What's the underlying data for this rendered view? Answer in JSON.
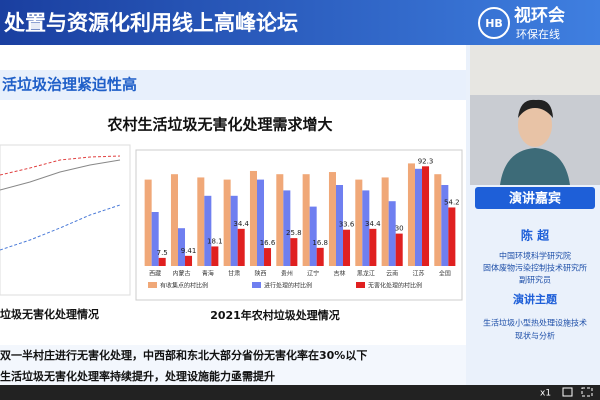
{
  "header": {
    "title": "处置与资源化利用线上高峰论坛",
    "logo_name": "视环会",
    "logo_slogan": "环保在线"
  },
  "slide": {
    "section_title": "活垃圾治理紧迫性高",
    "heading": "农村生活垃圾无害化处理需求增大",
    "left_caption": "垃圾无害化处理情况",
    "bullets": [
      "双一半村庄进行无害化处理，中西部和东北大部分省份无害化率在30%以下",
      "生活垃圾无害化处理率持续提升，处理设施能力亟需提升"
    ]
  },
  "chart_data": {
    "type": "bar",
    "title": "2021年农村垃圾处理情况",
    "categories": [
      "西藏",
      "内蒙古",
      "青海",
      "甘肃",
      "陕西",
      "贵州",
      "辽宁",
      "吉林",
      "黑龙江",
      "云南",
      "江苏",
      "全国"
    ],
    "series": [
      {
        "name": "有收集点的村比例",
        "color": "#f0a878",
        "values": [
          80,
          85,
          82,
          80,
          88,
          85,
          85,
          87,
          80,
          82,
          95,
          85
        ]
      },
      {
        "name": "进行处理的村比例",
        "color": "#6f7ff0",
        "values": [
          50,
          35,
          65,
          65,
          80,
          70,
          55,
          75,
          70,
          60,
          90,
          75
        ]
      },
      {
        "name": "无害化处理的村比例",
        "color": "#e02020",
        "values": [
          7.5,
          9.41,
          18.1,
          34.4,
          16.6,
          25.8,
          16.8,
          33.6,
          34.4,
          30,
          92.3,
          54.2
        ]
      }
    ],
    "ylim": [
      0,
      100
    ]
  },
  "speaker": {
    "banner": "演讲嘉宾",
    "name": "陈 超",
    "affiliation": [
      "中国环境科学研究院",
      "固体废物污染控制技术研究所",
      "副研究员"
    ],
    "topic_label": "演讲主题",
    "topic": [
      "生活垃圾小型热处理设施技术",
      "现状与分析"
    ]
  },
  "player": {
    "speed": "x1"
  }
}
